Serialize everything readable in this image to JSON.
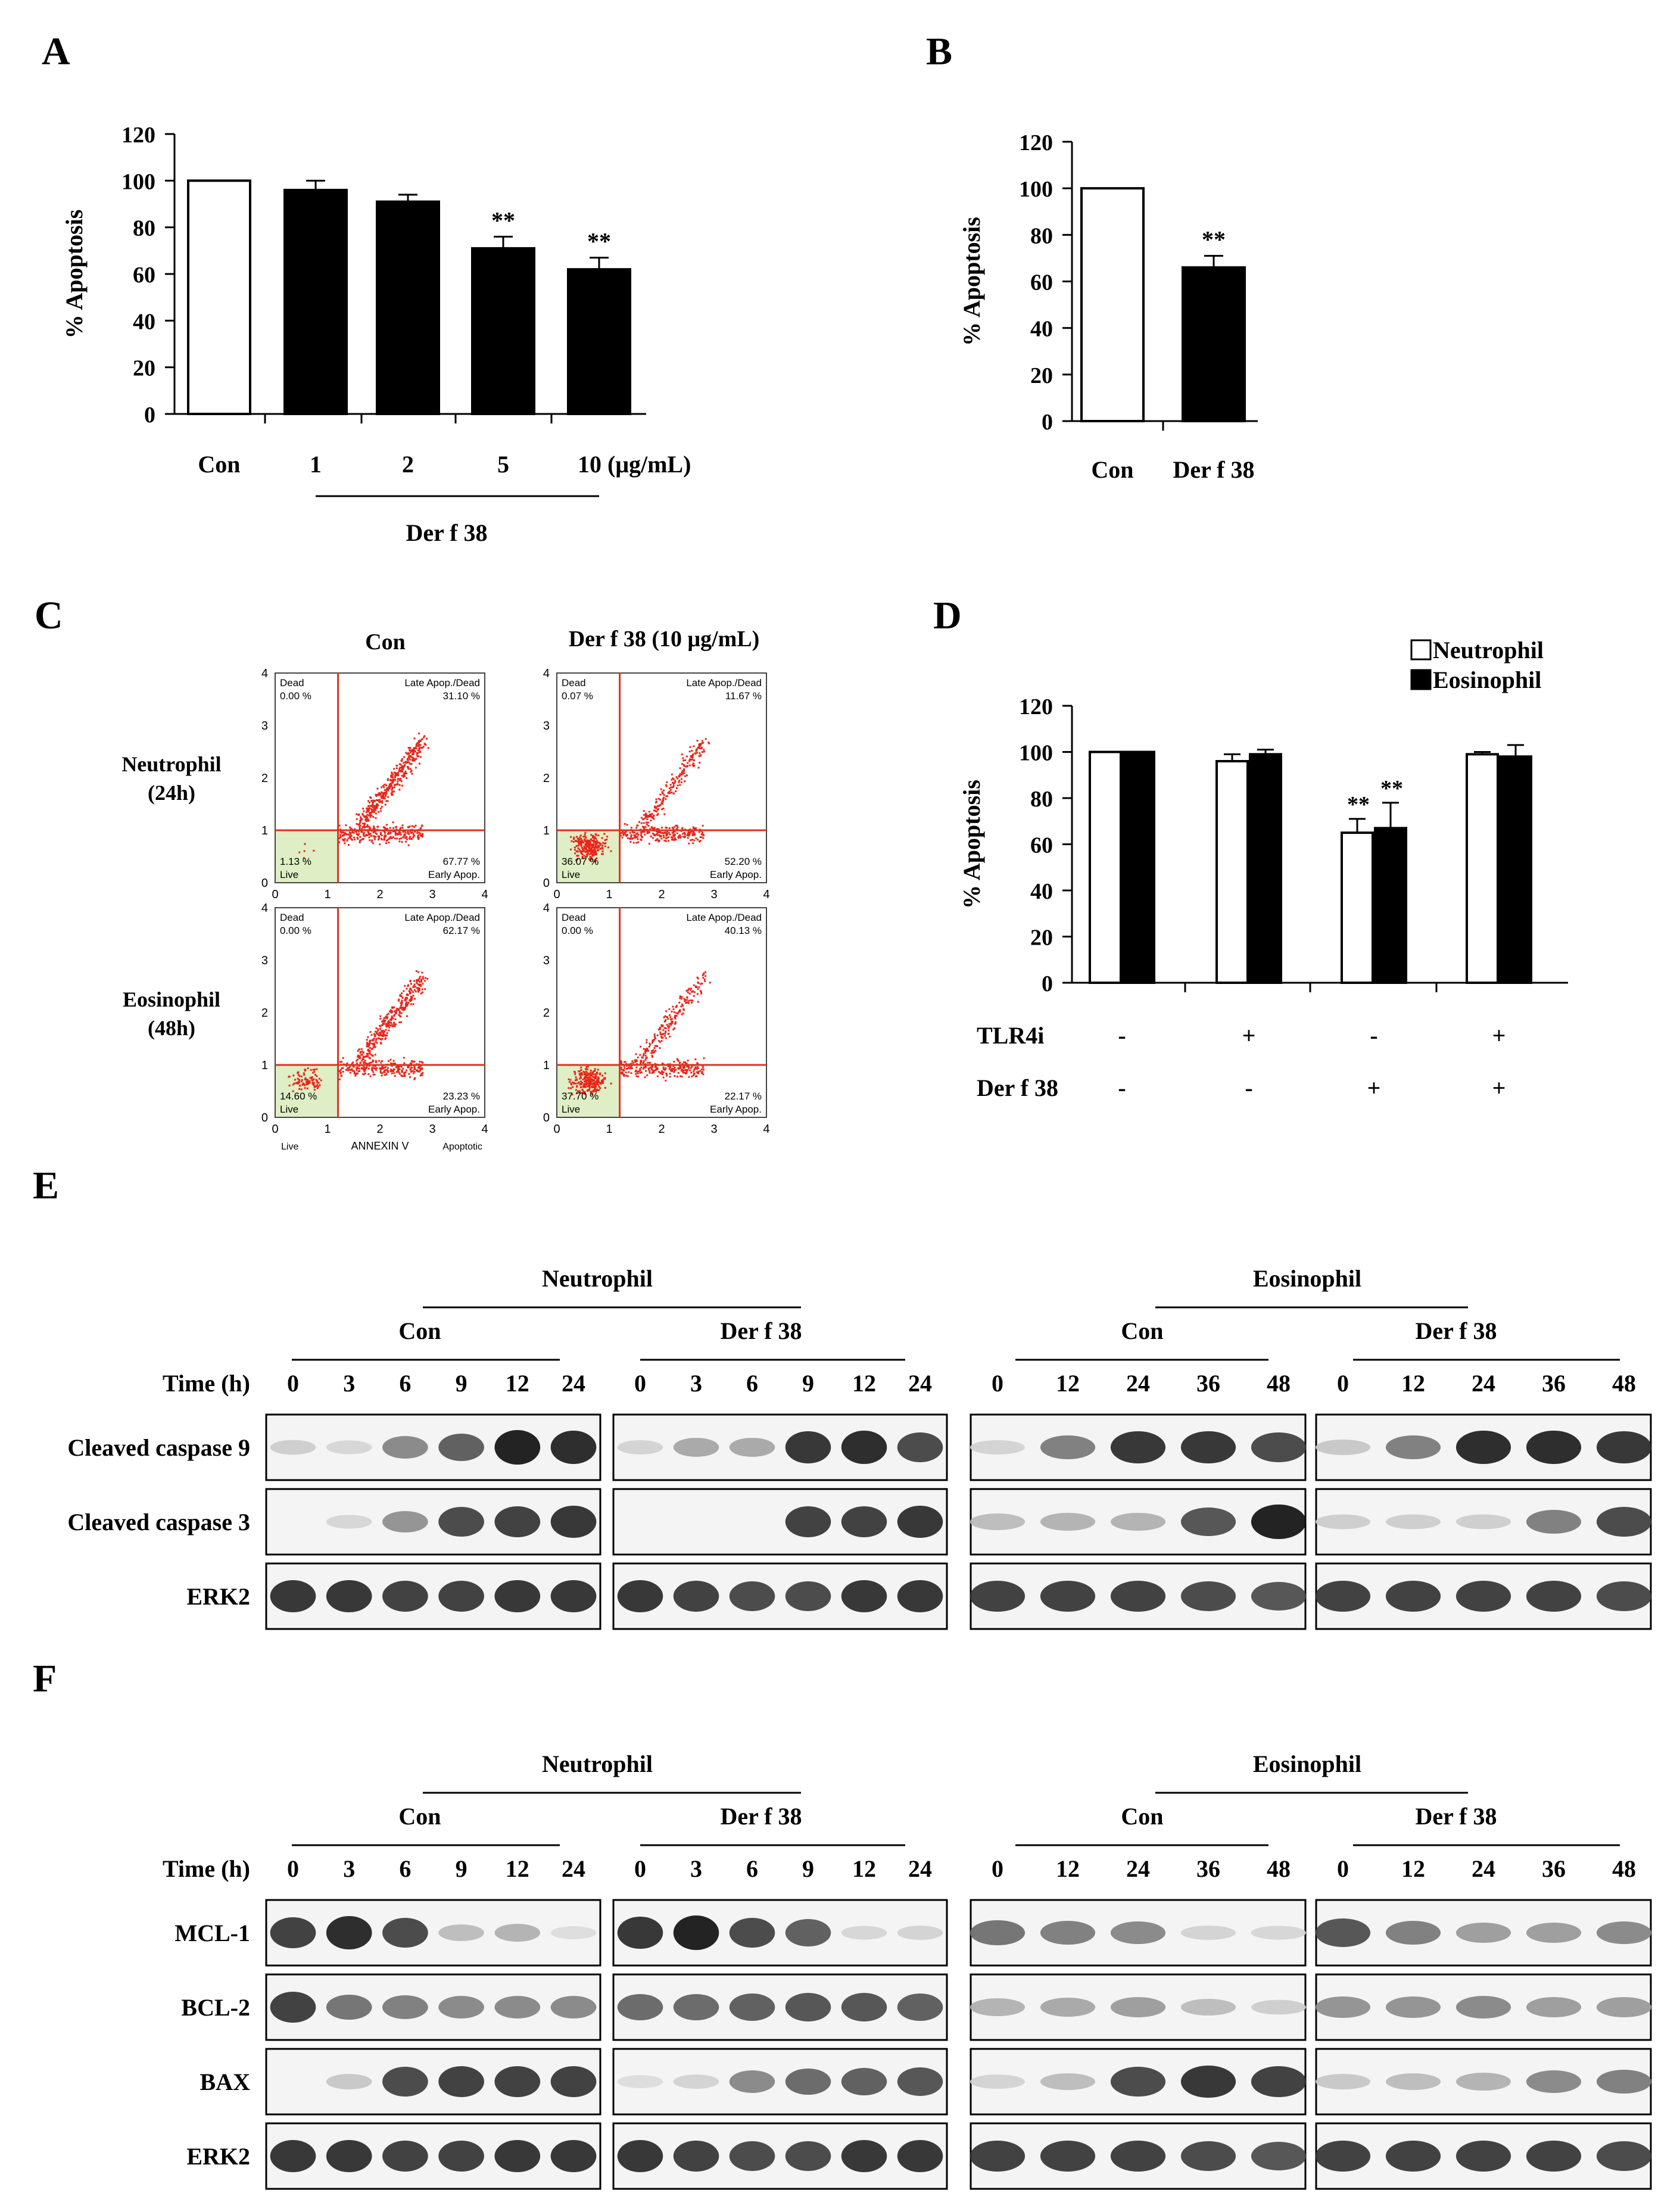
{
  "panels": {
    "A": "A",
    "B": "B",
    "C": "C",
    "D": "D",
    "E": "E",
    "F": "F"
  },
  "chart_data": [
    {
      "panel": "A",
      "type": "bar",
      "ylabel": "% Apoptosis",
      "ylim": [
        0,
        120
      ],
      "yticks": [
        "0",
        "20",
        "40",
        "60",
        "80",
        "100",
        "120"
      ],
      "categories": [
        "Con",
        "1",
        "2",
        "5",
        "10 (μg/mL)"
      ],
      "group_label": "Der f 38",
      "values": [
        100,
        96,
        91,
        71,
        62
      ],
      "errors": [
        0,
        4,
        3,
        5,
        5
      ],
      "fill": [
        "open",
        "solid",
        "solid",
        "solid",
        "solid"
      ],
      "stars": [
        "",
        "",
        "",
        "**",
        "**"
      ]
    },
    {
      "panel": "B",
      "type": "bar",
      "ylabel": "% Apoptosis",
      "ylim": [
        0,
        120
      ],
      "yticks": [
        "0",
        "20",
        "40",
        "60",
        "80",
        "100",
        "120"
      ],
      "categories": [
        "Con",
        "Der f 38"
      ],
      "values": [
        100,
        66
      ],
      "errors": [
        0,
        5
      ],
      "fill": [
        "open",
        "solid"
      ],
      "stars": [
        "",
        "**"
      ]
    },
    {
      "panel": "D",
      "type": "bar",
      "ylabel": "% Apoptosis",
      "ylim": [
        0,
        120
      ],
      "yticks": [
        "0",
        "20",
        "40",
        "60",
        "80",
        "100",
        "120"
      ],
      "legend": [
        "Neutrophil",
        "Eosinophil"
      ],
      "row_labels": [
        "TLR4i",
        "Der f 38"
      ],
      "rows": [
        [
          "-",
          "+",
          "-",
          "+"
        ],
        [
          "-",
          "-",
          "+",
          "+"
        ]
      ],
      "series": [
        {
          "name": "Neutrophil",
          "values": [
            100,
            96,
            65,
            99
          ],
          "errors": [
            0,
            3,
            6,
            1
          ],
          "stars": [
            "",
            "",
            "**",
            ""
          ]
        },
        {
          "name": "Eosinophil",
          "values": [
            100,
            99,
            67,
            98
          ],
          "errors": [
            0,
            2,
            11,
            5
          ],
          "stars": [
            "",
            "",
            "**",
            ""
          ]
        }
      ]
    }
  ],
  "flow": {
    "col_headers": [
      "Con",
      "Der f 38 (10 μg/mL)"
    ],
    "row_labels": [
      [
        "Neutrophil",
        "(24h)"
      ],
      [
        "Eosinophil",
        "(48h)"
      ]
    ],
    "quad_labels": {
      "dead": "Dead",
      "late": "Late Apop./Dead",
      "live": "Live",
      "early": "Early Apop."
    },
    "axis_bottom": [
      "Live",
      "ANNEXIN V",
      "Apoptotic"
    ],
    "ticks": [
      "0",
      "1",
      "2",
      "3",
      "4"
    ],
    "plots": [
      {
        "dead": "0.00 %",
        "late": "31.10 %",
        "live": "1.13 %",
        "early": "67.77 %"
      },
      {
        "dead": "0.07 %",
        "late": "11.67 %",
        "live": "36.07 %",
        "early": "52.20 %"
      },
      {
        "dead": "0.00 %",
        "late": "62.17 %",
        "live": "14.60 %",
        "early": "23.23 %"
      },
      {
        "dead": "0.00 %",
        "late": "40.13 %",
        "live": "37.70 %",
        "early": "22.17 %"
      }
    ]
  },
  "blots": {
    "E": {
      "groups": [
        "Neutrophil",
        "Eosinophil"
      ],
      "subgroups": [
        "Con",
        "Der f 38",
        "Con",
        "Der f 38"
      ],
      "time_label": "Time (h)",
      "times": [
        [
          "0",
          "3",
          "6",
          "9",
          "12",
          "24"
        ],
        [
          "0",
          "3",
          "6",
          "9",
          "12",
          "24"
        ],
        [
          "0",
          "12",
          "24",
          "36",
          "48"
        ],
        [
          "0",
          "12",
          "24",
          "36",
          "48"
        ]
      ],
      "rows": [
        {
          "name": "Cleaved caspase 9",
          "levels": [
            [
              0.12,
              0.08,
              0.45,
              0.65,
              0.95,
              0.9
            ],
            [
              0.1,
              0.3,
              0.3,
              0.85,
              0.9,
              0.75
            ],
            [
              0.1,
              0.5,
              0.85,
              0.85,
              0.75
            ],
            [
              0.15,
              0.5,
              0.9,
              0.9,
              0.85
            ]
          ]
        },
        {
          "name": "Cleaved caspase 3",
          "levels": [
            [
              0,
              0.08,
              0.4,
              0.75,
              0.8,
              0.85
            ],
            [
              0,
              0,
              0,
              0.8,
              0.8,
              0.85
            ],
            [
              0.2,
              0.25,
              0.25,
              0.7,
              0.95
            ],
            [
              0.12,
              0.12,
              0.12,
              0.5,
              0.75
            ]
          ]
        },
        {
          "name": "ERK2",
          "levels": [
            [
              0.85,
              0.85,
              0.8,
              0.8,
              0.85,
              0.85
            ],
            [
              0.85,
              0.8,
              0.75,
              0.75,
              0.85,
              0.85
            ],
            [
              0.8,
              0.8,
              0.8,
              0.75,
              0.7
            ],
            [
              0.8,
              0.8,
              0.8,
              0.8,
              0.75
            ]
          ]
        }
      ]
    },
    "F": {
      "groups": [
        "Neutrophil",
        "Eosinophil"
      ],
      "subgroups": [
        "Con",
        "Der f 38",
        "Con",
        "Der f 38"
      ],
      "time_label": "Time (h)",
      "times": [
        [
          "0",
          "3",
          "6",
          "9",
          "12",
          "24"
        ],
        [
          "0",
          "3",
          "6",
          "9",
          "12",
          "24"
        ],
        [
          "0",
          "12",
          "24",
          "36",
          "48"
        ],
        [
          "0",
          "12",
          "24",
          "36",
          "48"
        ]
      ],
      "rows": [
        {
          "name": "MCL-1",
          "levels": [
            [
              0.8,
              0.9,
              0.75,
              0.2,
              0.25,
              0.05
            ],
            [
              0.85,
              0.95,
              0.75,
              0.65,
              0.08,
              0.1
            ],
            [
              0.55,
              0.5,
              0.45,
              0.1,
              0.08
            ],
            [
              0.7,
              0.5,
              0.35,
              0.35,
              0.45
            ]
          ]
        },
        {
          "name": "BCL-2",
          "levels": [
            [
              0.8,
              0.55,
              0.5,
              0.45,
              0.45,
              0.45
            ],
            [
              0.6,
              0.6,
              0.65,
              0.7,
              0.7,
              0.65
            ],
            [
              0.25,
              0.3,
              0.35,
              0.2,
              0.12
            ],
            [
              0.4,
              0.4,
              0.45,
              0.35,
              0.35
            ]
          ]
        },
        {
          "name": "BAX",
          "levels": [
            [
              0,
              0.15,
              0.75,
              0.8,
              0.8,
              0.8
            ],
            [
              0.05,
              0.1,
              0.45,
              0.6,
              0.65,
              0.7
            ],
            [
              0.1,
              0.2,
              0.75,
              0.85,
              0.8
            ],
            [
              0.15,
              0.2,
              0.25,
              0.45,
              0.5
            ]
          ]
        },
        {
          "name": "ERK2",
          "levels": [
            [
              0.85,
              0.85,
              0.8,
              0.8,
              0.85,
              0.85
            ],
            [
              0.85,
              0.8,
              0.75,
              0.75,
              0.85,
              0.85
            ],
            [
              0.8,
              0.8,
              0.8,
              0.75,
              0.7
            ],
            [
              0.8,
              0.8,
              0.8,
              0.8,
              0.75
            ]
          ]
        }
      ]
    }
  }
}
